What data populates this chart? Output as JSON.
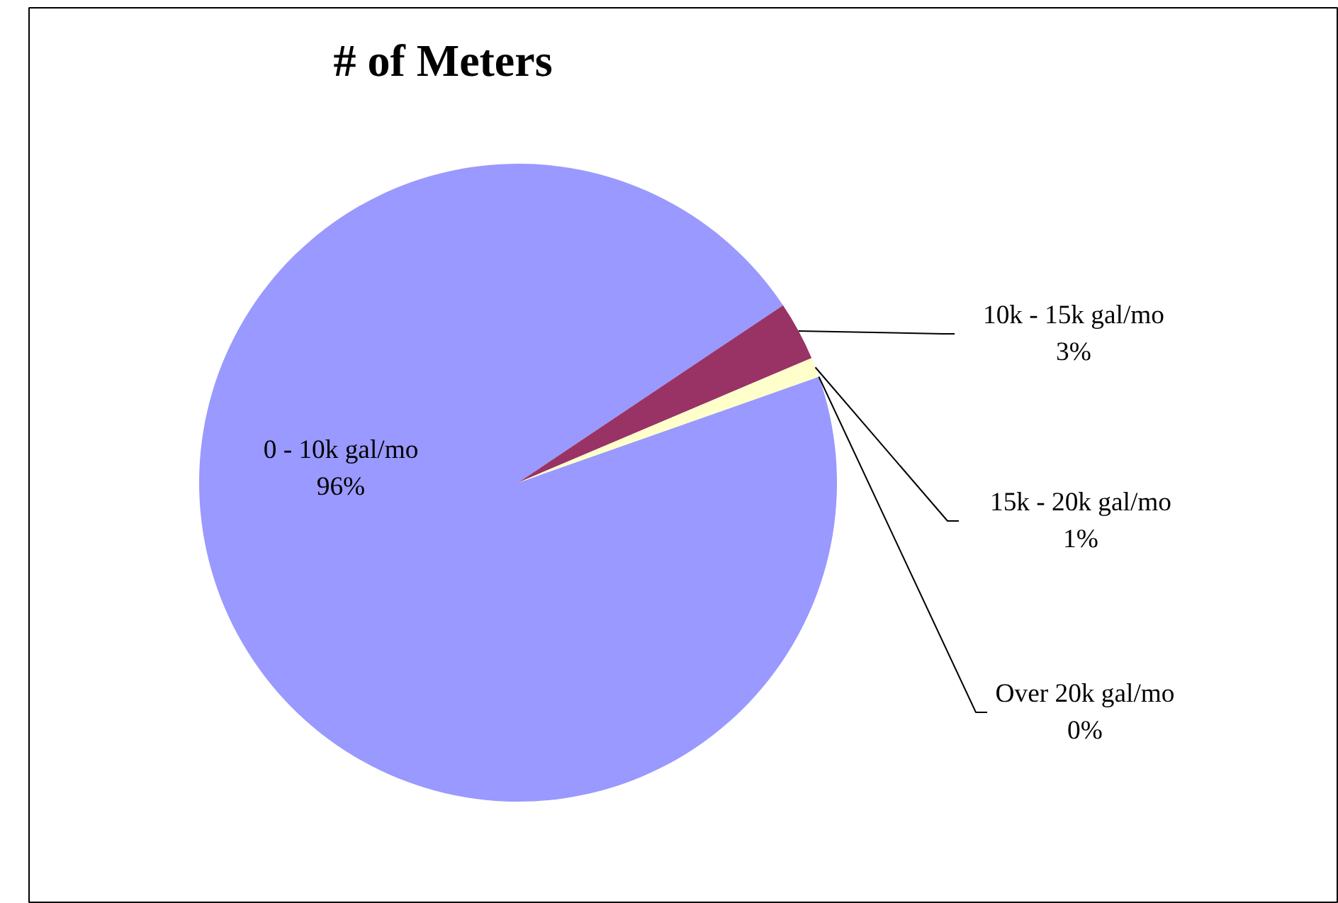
{
  "chart_data": {
    "type": "pie",
    "title": "# of Meters",
    "categories": [
      "0 - 10k gal/mo",
      "10k - 15k gal/mo",
      "15k - 20k gal/mo",
      "Over 20k gal/mo"
    ],
    "values": [
      96,
      3,
      1,
      0
    ],
    "colors": [
      "#9999ff",
      "#993366",
      "#ffffcc",
      "#ccffff"
    ],
    "value_labels": [
      "96%",
      "3%",
      "1%",
      "0%"
    ]
  }
}
